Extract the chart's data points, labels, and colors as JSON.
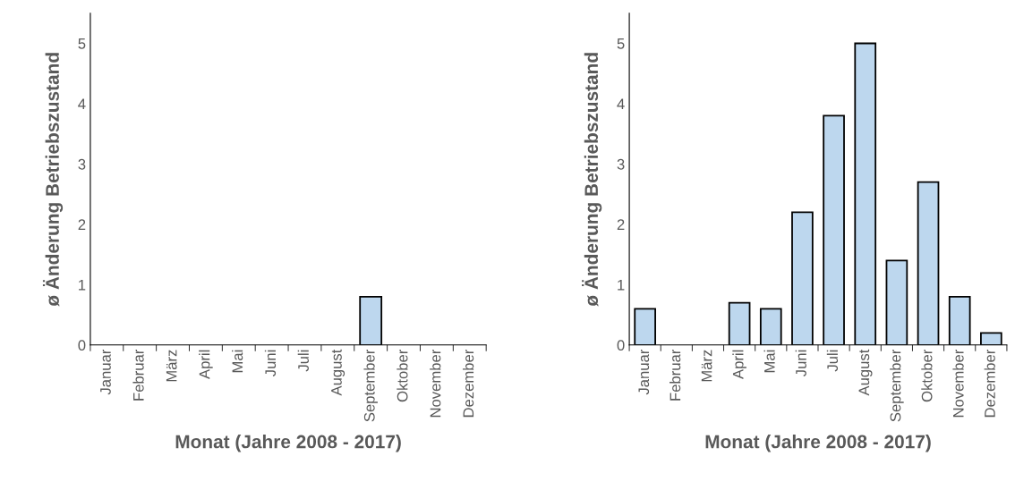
{
  "chart_data": [
    {
      "type": "bar",
      "xlabel": "Monat (Jahre 2008 - 2017)",
      "ylabel": "ø Änderung Betriebszustand",
      "categories": [
        "Januar",
        "Februar",
        "März",
        "April",
        "Mai",
        "Juni",
        "Juli",
        "August",
        "September",
        "Oktober",
        "November",
        "Dezember"
      ],
      "values": [
        0,
        0,
        0,
        0,
        0,
        0,
        0,
        0,
        0.8,
        0,
        0,
        0
      ],
      "color": "#bdd7ee",
      "ylim": [
        0,
        5.5
      ],
      "yticks": [
        0,
        1,
        2,
        3,
        4,
        5
      ],
      "grid": false,
      "legend": false
    },
    {
      "type": "bar",
      "xlabel": "Monat (Jahre 2008 - 2017)",
      "ylabel": "ø Änderung Betriebszustand",
      "categories": [
        "Januar",
        "Februar",
        "März",
        "April",
        "Mai",
        "Juni",
        "Juli",
        "August",
        "September",
        "Oktober",
        "November",
        "Dezember"
      ],
      "values": [
        0.6,
        0,
        0,
        0.7,
        0.6,
        2.2,
        3.8,
        5.0,
        1.4,
        2.7,
        0.8,
        0.2
      ],
      "color": "#bdd7ee",
      "ylim": [
        0,
        5.5
      ],
      "yticks": [
        0,
        1,
        2,
        3,
        4,
        5
      ],
      "grid": false,
      "legend": false
    }
  ]
}
